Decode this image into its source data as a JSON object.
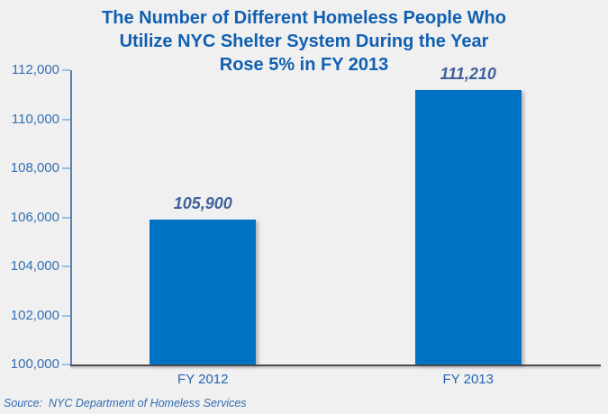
{
  "chart_data": {
    "type": "bar",
    "title": "The Number of Different Homeless People Who Utilize NYC Shelter System During the Year Rose 5% in FY 2013",
    "title_lines": [
      "The Number of Different Homeless People Who",
      "Utilize NYC Shelter System During the Year",
      "Rose 5% in FY 2013"
    ],
    "categories": [
      "FY 2012",
      "FY 2013"
    ],
    "values": [
      105900,
      111210
    ],
    "value_labels": [
      "105,900",
      "111,210"
    ],
    "xlabel": "",
    "ylabel": "",
    "ylim": [
      100000,
      112000
    ],
    "yticks": [
      {
        "value": 100000,
        "label": "100,000"
      },
      {
        "value": 102000,
        "label": "102,000"
      },
      {
        "value": 104000,
        "label": "104,000"
      },
      {
        "value": 106000,
        "label": "106,000"
      },
      {
        "value": 108000,
        "label": "108,000"
      },
      {
        "value": 110000,
        "label": "110,000"
      },
      {
        "value": 112000,
        "label": "112,000"
      }
    ],
    "grid": false,
    "legend": false,
    "colors": {
      "background": "#F1F0F0",
      "bar": "#0072C1",
      "title": "#1060B2",
      "axis_label": "#3470B4",
      "category_label": "#2465B0",
      "data_label": "#41619E",
      "y_axis_line": "#4F81BD",
      "x_axis_line": "#4A4A4A",
      "tick_mark": "#9DC0E2",
      "source": "#2E6DB4"
    }
  },
  "footer": {
    "source": "Source:  NYC Department of Homeless Services"
  }
}
